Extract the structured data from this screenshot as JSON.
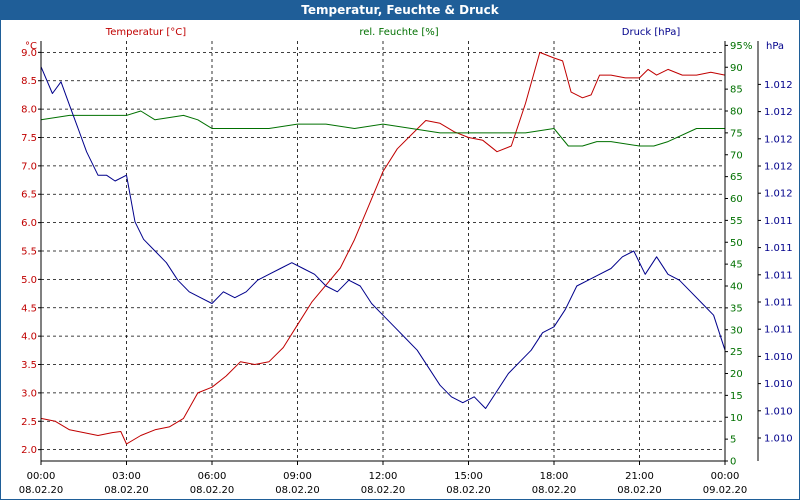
{
  "title": "Temperatur, Feuchte & Druck",
  "colors": {
    "header_bg": "#1f5e98",
    "temperature": "#c00000",
    "humidity": "#007000",
    "pressure": "#00008b",
    "grid": "#000000"
  },
  "chart_data": {
    "type": "line",
    "title": "Temperatur, Feuchte & Druck",
    "grid": true,
    "legend": "top",
    "x_ticks": [
      {
        "time": "00:00",
        "date": "08.02.20"
      },
      {
        "time": "03:00",
        "date": "08.02.20"
      },
      {
        "time": "06:00",
        "date": "08.02.20"
      },
      {
        "time": "09:00",
        "date": "08.02.20"
      },
      {
        "time": "12:00",
        "date": "08.02.20"
      },
      {
        "time": "15:00",
        "date": "08.02.20"
      },
      {
        "time": "18:00",
        "date": "08.02.20"
      },
      {
        "time": "21:00",
        "date": "08.02.20"
      },
      {
        "time": "00:00",
        "date": "09.02.20"
      }
    ],
    "axes": {
      "temperature": {
        "label": "Temperatur [°C]",
        "unit": "°C",
        "ylim": [
          1.8,
          9.2
        ],
        "ticks": [
          "2.0",
          "2.5",
          "3.0",
          "3.5",
          "4.0",
          "4.5",
          "5.0",
          "5.5",
          "6.0",
          "6.5",
          "7.0",
          "7.5",
          "8.0",
          "8.5",
          "9.0"
        ]
      },
      "humidity": {
        "label": "rel. Feuchte [%]",
        "unit": "%",
        "ylim": [
          0,
          96
        ],
        "ticks": [
          "0",
          "5",
          "10",
          "15",
          "20",
          "25",
          "30",
          "35",
          "40",
          "45",
          "50",
          "55",
          "60",
          "65",
          "70",
          "75",
          "80",
          "85",
          "90",
          "95"
        ]
      },
      "pressure": {
        "label": "Druck [hPa]",
        "unit": "hPa",
        "ylim": [
          1009.4,
          1013.0
        ],
        "ticks": [
          "1.010",
          "1.010",
          "1.010",
          "1.010",
          "1.011",
          "1.011",
          "1.011",
          "1.011",
          "1.011",
          "1.012",
          "1.012",
          "1.012",
          "1.012",
          "1.012"
        ]
      }
    },
    "series": [
      {
        "name": "Temperatur [°C]",
        "axis": "temperature",
        "x": [
          0,
          0.5,
          1,
          1.5,
          2,
          2.5,
          2.8,
          3,
          3.5,
          4,
          4.5,
          5,
          5.5,
          6,
          6.5,
          7,
          7.5,
          8,
          8.5,
          9,
          9.5,
          10,
          10.5,
          11,
          11.5,
          12,
          12.5,
          13,
          13.5,
          14,
          14.5,
          15,
          15.5,
          16,
          16.5,
          17,
          17.5,
          18,
          18.3,
          18.6,
          19,
          19.3,
          19.6,
          20,
          20.5,
          21,
          21.3,
          21.6,
          22,
          22.5,
          23,
          23.5,
          24
        ],
        "values": [
          2.55,
          2.5,
          2.35,
          2.3,
          2.25,
          2.3,
          2.32,
          2.1,
          2.25,
          2.35,
          2.4,
          2.55,
          3.0,
          3.1,
          3.3,
          3.55,
          3.5,
          3.55,
          3.8,
          4.2,
          4.6,
          4.9,
          5.2,
          5.7,
          6.3,
          6.9,
          7.3,
          7.55,
          7.8,
          7.75,
          7.6,
          7.5,
          7.45,
          7.25,
          7.35,
          8.1,
          9.0,
          8.9,
          8.85,
          8.3,
          8.2,
          8.25,
          8.6,
          8.6,
          8.55,
          8.55,
          8.7,
          8.6,
          8.7,
          8.6,
          8.6,
          8.65,
          8.6
        ]
      },
      {
        "name": "rel. Feuchte [%]",
        "axis": "humidity",
        "x": [
          0,
          1,
          2,
          3,
          3.5,
          4,
          5,
          5.5,
          6,
          7,
          8,
          9,
          10,
          11,
          12,
          13,
          14,
          15,
          16,
          17,
          18,
          18.5,
          19,
          19.5,
          20,
          21,
          21.5,
          22,
          23,
          24
        ],
        "values": [
          78,
          79,
          79,
          79,
          80,
          78,
          79,
          78,
          76,
          76,
          76,
          77,
          77,
          76,
          77,
          76,
          75,
          75,
          75,
          75,
          76,
          72,
          72,
          73,
          73,
          72,
          72,
          73,
          76,
          76
        ]
      },
      {
        "name": "Druck [hPa]",
        "axis": "pressure",
        "x": [
          0,
          0.4,
          0.7,
          1,
          1.3,
          1.6,
          2,
          2.3,
          2.6,
          3,
          3.3,
          3.6,
          4,
          4.4,
          4.8,
          5.2,
          5.6,
          6,
          6.4,
          6.8,
          7.2,
          7.6,
          8,
          8.4,
          8.8,
          9.2,
          9.6,
          10,
          10.4,
          10.8,
          11.2,
          11.6,
          12,
          12.4,
          12.8,
          13.2,
          13.6,
          14,
          14.4,
          14.8,
          15.2,
          15.6,
          16,
          16.4,
          16.8,
          17.2,
          17.6,
          18,
          18.4,
          18.8,
          19.2,
          19.6,
          20,
          20.4,
          20.8,
          21.2,
          21.6,
          22,
          22.4,
          22.8,
          23.2,
          23.6,
          24
        ],
        "values": [
          1012.78,
          1012.55,
          1012.65,
          1012.45,
          1012.25,
          1012.05,
          1011.85,
          1011.85,
          1011.8,
          1011.85,
          1011.45,
          1011.3,
          1011.2,
          1011.1,
          1010.95,
          1010.85,
          1010.8,
          1010.75,
          1010.85,
          1010.8,
          1010.85,
          1010.95,
          1011.0,
          1011.05,
          1011.1,
          1011.05,
          1011.0,
          1010.9,
          1010.85,
          1010.95,
          1010.9,
          1010.75,
          1010.65,
          1010.55,
          1010.45,
          1010.35,
          1010.2,
          1010.05,
          1009.95,
          1009.9,
          1009.95,
          1009.85,
          1010.0,
          1010.15,
          1010.25,
          1010.35,
          1010.5,
          1010.55,
          1010.7,
          1010.9,
          1010.95,
          1011.0,
          1011.05,
          1011.15,
          1011.2,
          1011.0,
          1011.15,
          1011.0,
          1010.95,
          1010.85,
          1010.75,
          1010.65,
          1010.35
        ]
      }
    ]
  }
}
